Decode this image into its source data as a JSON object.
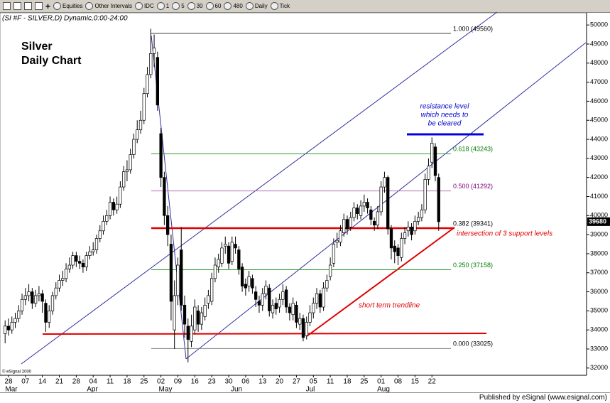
{
  "toolbar": {
    "items": [
      "Equities",
      "Other Intervals",
      "IDC",
      "1",
      "5",
      "30",
      "60",
      "480",
      "Daily",
      "Tick"
    ]
  },
  "chart_data": {
    "type": "candlestick",
    "title": "(SI #F - SILVER,D) Dynamic,0:00-24:00",
    "chart_label": [
      "Silver",
      "Daily Chart"
    ],
    "resistance_note": [
      "resistance level",
      "which needs to",
      "be cleared"
    ],
    "support_note": "intersection of 3 support levels",
    "trendline_note": "short term trendline",
    "copyright": "© eSignal 2000",
    "categories": [
      null,
      "28",
      null,
      null,
      null,
      null,
      "07",
      null,
      null,
      null,
      null,
      "14",
      null,
      null,
      null,
      null,
      "21",
      null,
      null,
      null,
      null,
      "28",
      null,
      null,
      null,
      null,
      "04",
      null,
      null,
      null,
      null,
      "11",
      null,
      null,
      null,
      null,
      "18",
      null,
      null,
      null,
      null,
      "25",
      null,
      null,
      null,
      null,
      "02",
      null,
      null,
      null,
      null,
      "09",
      null,
      null,
      null,
      null,
      "16",
      null,
      null,
      null,
      null,
      "23",
      null,
      null,
      null,
      null,
      "30",
      null,
      null,
      null,
      null,
      "06",
      null,
      null,
      null,
      null,
      "13",
      null,
      null,
      null,
      null,
      "20",
      null,
      null,
      null,
      null,
      "27",
      null,
      null,
      null,
      null,
      "05",
      null,
      null,
      null,
      null,
      "11",
      null,
      null,
      null,
      null,
      "18",
      null,
      null,
      null,
      null,
      "25",
      null,
      null,
      null,
      null,
      "01",
      null,
      null,
      null,
      null,
      "08",
      null,
      null,
      null,
      null,
      "15",
      null,
      null,
      null,
      null,
      "22",
      null,
      null
    ],
    "months": [
      "Mar",
      "Apr",
      "May",
      "Jun",
      "Jul",
      "Aug"
    ],
    "open": [
      33800,
      34200,
      34000,
      34400,
      34600,
      35000,
      35600,
      35800,
      36000,
      35400,
      35800,
      35900,
      35400,
      34400,
      35000,
      35800,
      36200,
      36600,
      36700,
      37200,
      37400,
      37900,
      37600,
      37500,
      37300,
      37900,
      38100,
      38200,
      38800,
      39200,
      39700,
      40000,
      40700,
      40300,
      40600,
      41500,
      42300,
      42400,
      43200,
      44000,
      44500,
      45000,
      46400,
      47400,
      48500,
      48300,
      44300,
      42000,
      40000,
      38500,
      34000,
      35800,
      38200,
      35300,
      34200,
      33400,
      34000,
      35000,
      34300,
      34700,
      35400,
      35500,
      36700,
      37300,
      37500,
      38400,
      38400,
      37600,
      38500,
      38200,
      37300,
      36400,
      36300,
      36700,
      36000,
      35500,
      35300,
      35900,
      36200,
      34900,
      35400,
      35200,
      35600,
      36100,
      35200,
      34800,
      35300,
      34300,
      34600,
      33700,
      34400,
      34900,
      35400,
      35900,
      35200,
      36200,
      36800,
      37500,
      38600,
      38600,
      39100,
      39800,
      39400,
      39900,
      40400,
      40000,
      40500,
      40700,
      40300,
      39700,
      39500,
      40200,
      41500,
      42000,
      39300,
      38400,
      38300,
      37800,
      38800,
      39200,
      39400,
      39200,
      39700,
      39900,
      40300,
      41900,
      42800,
      43600,
      42000
    ],
    "high": [
      34500,
      34600,
      34700,
      34900,
      35300,
      35900,
      36200,
      36400,
      36200,
      36100,
      36300,
      36100,
      35600,
      35300,
      36000,
      36500,
      36900,
      37100,
      37500,
      37800,
      38100,
      38100,
      37900,
      37700,
      38100,
      38400,
      38600,
      39000,
      39500,
      40000,
      40300,
      41000,
      40900,
      41000,
      41800,
      42600,
      42900,
      43500,
      44300,
      45000,
      45500,
      46700,
      47800,
      49800,
      49500,
      48600,
      44600,
      42300,
      40500,
      39000,
      36600,
      37800,
      39400,
      35800,
      34600,
      34800,
      35600,
      35300,
      35200,
      35700,
      36100,
      37000,
      37800,
      38000,
      38600,
      38900,
      38600,
      38900,
      38900,
      38400,
      37500,
      36700,
      37100,
      36900,
      36300,
      35800,
      36200,
      36600,
      36400,
      35600,
      35700,
      35900,
      36400,
      36300,
      35400,
      35700,
      35500,
      34900,
      34800,
      34700,
      35300,
      35700,
      36200,
      36100,
      36500,
      36900,
      37800,
      38800,
      39100,
      39500,
      40100,
      40000,
      40200,
      40700,
      40600,
      40800,
      41100,
      40900,
      40500,
      39900,
      40500,
      41800,
      42300,
      42100,
      39500,
      38700,
      38500,
      39100,
      39400,
      39700,
      39600,
      40000,
      40200,
      40600,
      42200,
      43000,
      44100,
      43800,
      42200
    ],
    "low": [
      33300,
      33700,
      33800,
      34100,
      34400,
      34800,
      35300,
      35500,
      35100,
      35200,
      35500,
      34900,
      33900,
      34100,
      34800,
      35600,
      36000,
      36300,
      36500,
      37000,
      37200,
      37300,
      37200,
      37000,
      37100,
      37700,
      37900,
      38000,
      38600,
      39000,
      39500,
      39800,
      40000,
      40100,
      40400,
      41300,
      41800,
      42200,
      43000,
      43800,
      44300,
      44800,
      46200,
      47200,
      47800,
      45500,
      41500,
      39500,
      38400,
      34500,
      33000,
      35300,
      35000,
      33600,
      32300,
      33100,
      33800,
      33900,
      34000,
      34500,
      35100,
      35300,
      36500,
      37000,
      37300,
      38000,
      37200,
      37400,
      38000,
      36900,
      36000,
      35800,
      36000,
      35900,
      35200,
      34900,
      35000,
      35600,
      34700,
      34600,
      34800,
      34900,
      35300,
      34900,
      34500,
      34500,
      34100,
      34000,
      33400,
      33500,
      34200,
      34600,
      35100,
      34900,
      35000,
      36000,
      36600,
      37300,
      38300,
      38400,
      38900,
      39000,
      39200,
      39700,
      39800,
      39800,
      40200,
      40100,
      39500,
      39200,
      39300,
      40000,
      41200,
      39000,
      37700,
      37500,
      37400,
      37600,
      38500,
      38900,
      38700,
      39000,
      39500,
      39700,
      40100,
      41600,
      42500,
      41800,
      39200
    ],
    "close": [
      34200,
      34000,
      34400,
      34600,
      35000,
      35600,
      35800,
      36000,
      35400,
      35800,
      35900,
      35500,
      34400,
      35000,
      35800,
      36200,
      36600,
      36700,
      37200,
      37400,
      37900,
      37600,
      37500,
      37300,
      37900,
      38100,
      38200,
      38800,
      39200,
      39700,
      40000,
      40700,
      40300,
      40600,
      41500,
      42300,
      42400,
      43200,
      44000,
      44500,
      45000,
      46400,
      47400,
      48500,
      48800,
      45800,
      42000,
      40000,
      39000,
      35500,
      35800,
      37400,
      35300,
      34300,
      33500,
      34200,
      35200,
      34300,
      34900,
      35300,
      35800,
      36700,
      37400,
      37700,
      38300,
      38500,
      37500,
      38600,
      38300,
      37200,
      36300,
      36200,
      36800,
      36200,
      35600,
      35300,
      35900,
      36300,
      35000,
      35300,
      35100,
      35600,
      36000,
      35200,
      34900,
      35400,
      34400,
      34600,
      33600,
      34400,
      34900,
      35400,
      35900,
      35200,
      36200,
      36600,
      37400,
      38500,
      38700,
      39200,
      39800,
      39300,
      39900,
      40400,
      40100,
      40500,
      40700,
      40400,
      39800,
      39500,
      40200,
      41500,
      42000,
      39300,
      38300,
      38100,
      37900,
      38800,
      39100,
      39400,
      39000,
      39700,
      39900,
      40300,
      41900,
      42600,
      43800,
      42100,
      39680
    ],
    "ylim": [
      31620,
      50640
    ],
    "yticks": [
      32000,
      33000,
      34000,
      35000,
      36000,
      37000,
      38000,
      39000,
      40000,
      41000,
      42000,
      43000,
      44000,
      45000,
      46000,
      47000,
      48000,
      49000,
      50000
    ],
    "fib_levels": [
      {
        "label": "1.000 (49560)",
        "value": 49560,
        "color": "#000000",
        "line_color": "#404040"
      },
      {
        "label": "0.618 (43243)",
        "value": 43243,
        "color": "#007a00",
        "line_color": "#2e9a2e"
      },
      {
        "label": "0.500 (41292)",
        "value": 41292,
        "color": "#800080",
        "line_color": "#b070b0"
      },
      {
        "label": "0.382 (39341)",
        "value": 39341,
        "color": "#000000",
        "line_color": "#e00000"
      },
      {
        "label": "0.250 (37158)",
        "value": 37158,
        "color": "#007a00",
        "line_color": "#2e9a2e"
      },
      {
        "label": "0.000 (33025)",
        "value": 33025,
        "color": "#000000",
        "line_color": "#808080"
      }
    ]
  },
  "footer": "Published by eSignal (www.esignal.com)"
}
